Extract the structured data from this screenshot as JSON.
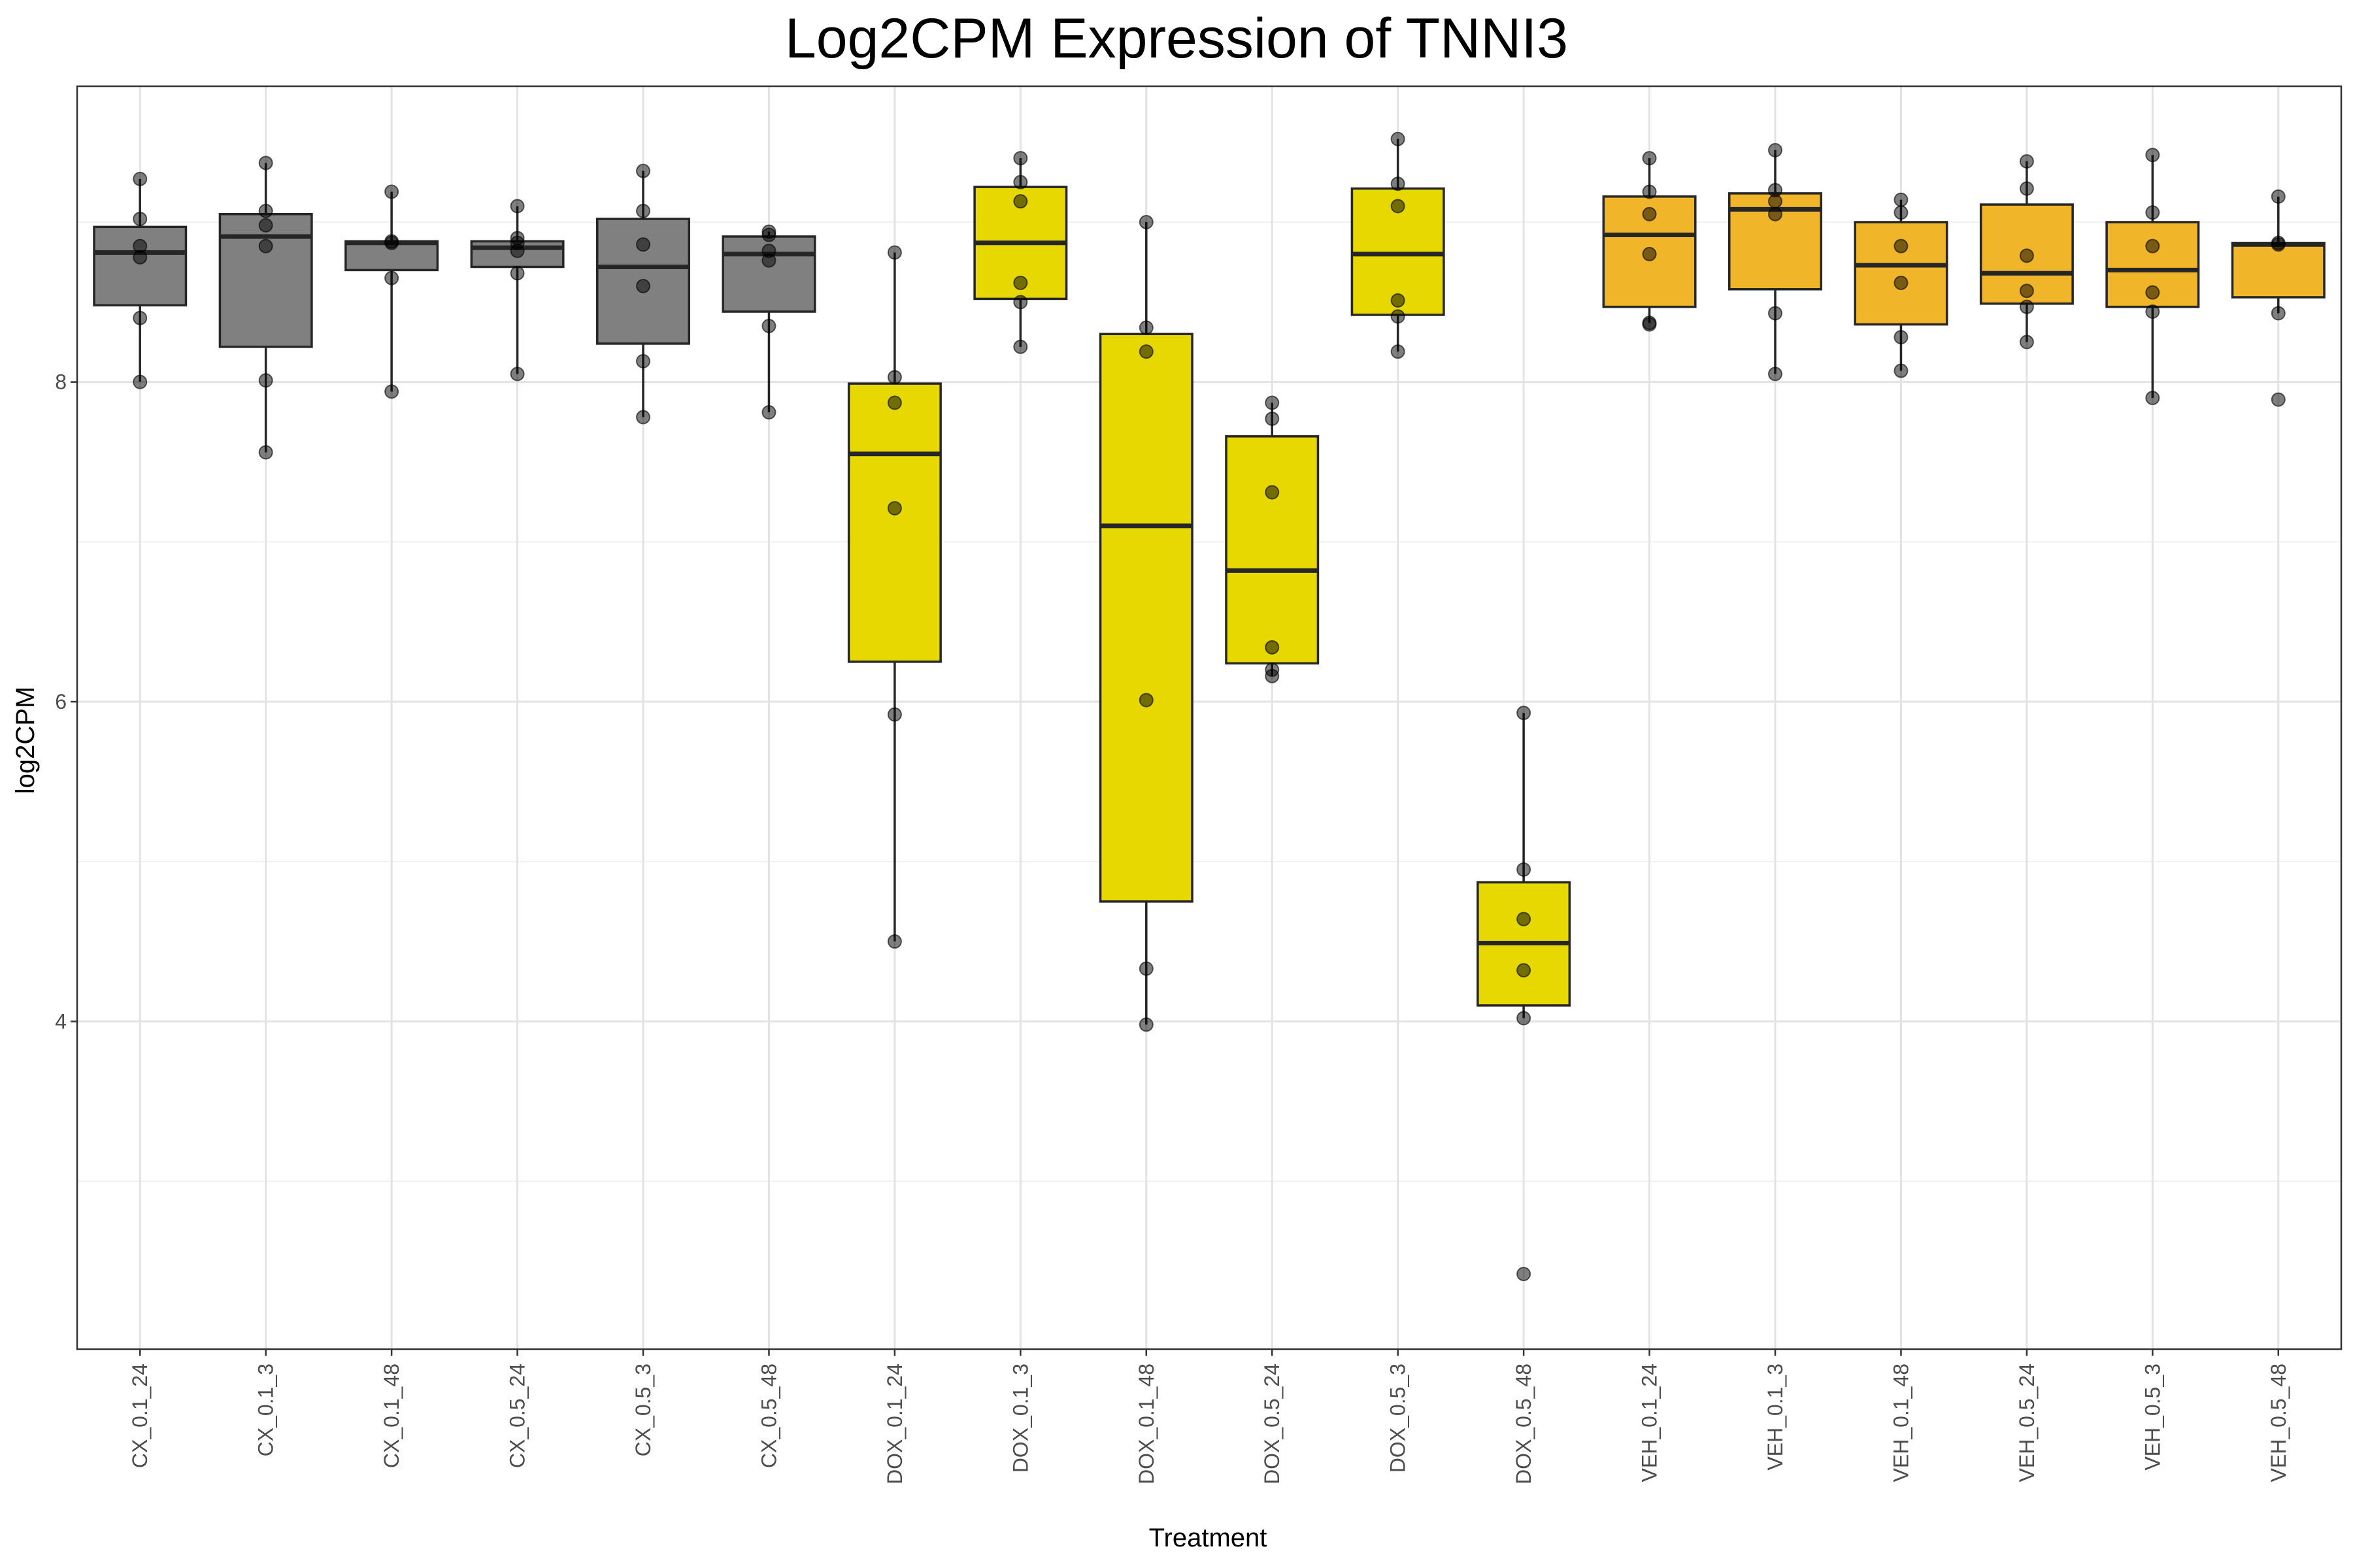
{
  "chart_data": {
    "type": "box",
    "title": "Log2CPM Expression of TNNI3",
    "xlabel": "Treatment",
    "ylabel": "log2CPM",
    "ylim": [
      1.95,
      9.85
    ],
    "yticks": [
      4,
      6,
      8
    ],
    "grid": true,
    "colors": {
      "CX": "#808080",
      "DOX": "#e6d800",
      "VEH": "#f0b528"
    },
    "categories": [
      "CX_0.1_24",
      "CX_0.1_3",
      "CX_0.1_48",
      "CX_0.5_24",
      "CX_0.5_3",
      "CX_0.5_48",
      "DOX_0.1_24",
      "DOX_0.1_3",
      "DOX_0.1_48",
      "DOX_0.5_24",
      "DOX_0.5_3",
      "DOX_0.5_48",
      "VEH_0.1_24",
      "VEH_0.1_3",
      "VEH_0.1_48",
      "VEH_0.5_24",
      "VEH_0.5_3",
      "VEH_0.5_48"
    ],
    "boxes": [
      {
        "group": "CX",
        "whisker_low": 8.0,
        "q1": 8.48,
        "median": 8.81,
        "q3": 8.97,
        "whisker_high": 9.27,
        "points": [
          9.27,
          9.02,
          8.85,
          8.78,
          8.4,
          8.0
        ]
      },
      {
        "group": "CX",
        "whisker_low": 7.56,
        "q1": 8.22,
        "median": 8.91,
        "q3": 9.05,
        "whisker_high": 9.37,
        "points": [
          9.37,
          9.07,
          8.98,
          8.85,
          8.01,
          7.56
        ]
      },
      {
        "group": "CX",
        "whisker_low": 7.94,
        "q1": 8.7,
        "median": 8.87,
        "q3": 8.88,
        "whisker_high": 9.19,
        "points": [
          9.19,
          8.88,
          8.87,
          8.65,
          7.94
        ]
      },
      {
        "group": "CX",
        "whisker_low": 8.05,
        "q1": 8.72,
        "median": 8.84,
        "q3": 8.88,
        "whisker_high": 9.1,
        "points": [
          9.1,
          8.9,
          8.87,
          8.82,
          8.68,
          8.05
        ]
      },
      {
        "group": "CX",
        "whisker_low": 7.78,
        "q1": 8.24,
        "median": 8.72,
        "q3": 9.02,
        "whisker_high": 9.32,
        "points": [
          9.32,
          9.07,
          8.86,
          8.6,
          8.13,
          7.78
        ]
      },
      {
        "group": "CX",
        "whisker_low": 7.81,
        "q1": 8.44,
        "median": 8.8,
        "q3": 8.91,
        "whisker_high": 8.94,
        "points": [
          8.94,
          8.92,
          8.82,
          8.76,
          8.35,
          7.81
        ]
      },
      {
        "group": "DOX",
        "whisker_low": 4.5,
        "q1": 6.25,
        "median": 7.55,
        "q3": 7.99,
        "whisker_high": 8.81,
        "points": [
          8.81,
          8.03,
          7.87,
          7.21,
          5.92,
          4.5
        ]
      },
      {
        "group": "DOX",
        "whisker_low": 8.22,
        "q1": 8.52,
        "median": 8.87,
        "q3": 9.22,
        "whisker_high": 9.4,
        "points": [
          9.4,
          9.25,
          9.13,
          8.62,
          8.5,
          8.22
        ]
      },
      {
        "group": "DOX",
        "whisker_low": 3.98,
        "q1": 4.75,
        "median": 7.1,
        "q3": 8.3,
        "whisker_high": 9.0,
        "points": [
          9.0,
          8.34,
          8.19,
          6.01,
          4.33,
          3.98
        ]
      },
      {
        "group": "DOX",
        "whisker_low": 6.16,
        "q1": 6.24,
        "median": 6.82,
        "q3": 7.66,
        "whisker_high": 7.87,
        "points": [
          7.87,
          7.77,
          7.31,
          6.34,
          6.2,
          6.16
        ]
      },
      {
        "group": "DOX",
        "whisker_low": 8.19,
        "q1": 8.42,
        "median": 8.8,
        "q3": 9.21,
        "whisker_high": 9.52,
        "points": [
          9.52,
          9.24,
          9.1,
          8.51,
          8.41,
          8.19
        ]
      },
      {
        "group": "DOX",
        "whisker_low": 4.02,
        "q1": 4.1,
        "median": 4.49,
        "q3": 4.87,
        "whisker_high": 5.93,
        "points": [
          5.93,
          4.95,
          4.64,
          4.32,
          4.02,
          2.42
        ]
      },
      {
        "group": "VEH",
        "whisker_low": 8.37,
        "q1": 8.47,
        "median": 8.92,
        "q3": 9.16,
        "whisker_high": 9.4,
        "points": [
          9.4,
          9.19,
          9.05,
          8.8,
          8.37,
          8.36
        ]
      },
      {
        "group": "VEH",
        "whisker_low": 8.05,
        "q1": 8.58,
        "median": 9.08,
        "q3": 9.18,
        "whisker_high": 9.45,
        "points": [
          9.45,
          9.2,
          9.13,
          9.05,
          8.43,
          8.05
        ]
      },
      {
        "group": "VEH",
        "whisker_low": 8.07,
        "q1": 8.36,
        "median": 8.73,
        "q3": 9.0,
        "whisker_high": 9.14,
        "points": [
          9.14,
          9.06,
          8.85,
          8.62,
          8.28,
          8.07
        ]
      },
      {
        "group": "VEH",
        "whisker_low": 8.25,
        "q1": 8.49,
        "median": 8.68,
        "q3": 9.11,
        "whisker_high": 9.38,
        "points": [
          9.38,
          9.21,
          8.79,
          8.57,
          8.47,
          8.25
        ]
      },
      {
        "group": "VEH",
        "whisker_low": 7.9,
        "q1": 8.47,
        "median": 8.7,
        "q3": 9.0,
        "whisker_high": 9.42,
        "points": [
          9.42,
          9.06,
          8.85,
          8.56,
          8.44,
          7.9
        ]
      },
      {
        "group": "VEH",
        "whisker_low": 8.43,
        "q1": 8.53,
        "median": 8.86,
        "q3": 8.87,
        "whisker_high": 9.16,
        "points": [
          9.16,
          8.87,
          8.86,
          8.43,
          7.89
        ]
      }
    ]
  }
}
